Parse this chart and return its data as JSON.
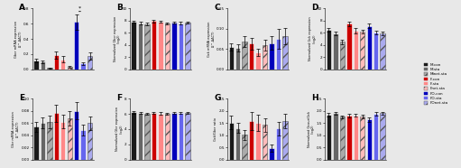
{
  "categories": [
    "M-con",
    "M-sta",
    "Minet-sta",
    "F-con",
    "F-sta",
    "Fnet-sta",
    "FO-con",
    "FO-sta",
    "FOnet-sta"
  ],
  "color_list": [
    "#1a1a1a",
    "#666666",
    "#aaaaaa",
    "#cc0000",
    "#ff8888",
    "#ffbbbb",
    "#0000bb",
    "#6666ee",
    "#aaaaee"
  ],
  "hatch_list": [
    "",
    "",
    "///",
    "",
    "",
    "///",
    "",
    "",
    "///"
  ],
  "panels": {
    "A": {
      "title": "A",
      "ylabel": "Gbcr mRNA expression\n(2^-ΔΔCT)",
      "values": [
        0.12,
        0.1,
        0.018,
        0.185,
        0.13,
        0.03,
        0.62,
        0.075,
        0.175
      ],
      "errors": [
        0.025,
        0.022,
        0.006,
        0.05,
        0.04,
        0.01,
        0.1,
        0.018,
        0.045
      ],
      "ylim": [
        0,
        0.8
      ],
      "yticks": [
        0,
        0.2,
        0.4,
        0.6,
        0.8
      ],
      "significance": true
    },
    "B": {
      "title": "B",
      "ylabel": "Normalized Gbcr expression\n(log2)",
      "values": [
        7.8,
        7.6,
        7.45,
        7.9,
        7.8,
        7.5,
        7.7,
        7.6,
        7.65
      ],
      "errors": [
        0.18,
        0.18,
        0.18,
        0.2,
        0.18,
        0.15,
        0.18,
        0.15,
        0.15
      ],
      "ylim": [
        0,
        10
      ],
      "yticks": [
        0,
        2,
        4,
        6,
        8,
        10
      ]
    },
    "C": {
      "title": "C",
      "ylabel": "Gck mRNA expression\n(2^-ΔΔCT)",
      "values": [
        0.055,
        0.052,
        0.068,
        0.063,
        0.042,
        0.06,
        0.065,
        0.075,
        0.082
      ],
      "errors": [
        0.009,
        0.009,
        0.014,
        0.014,
        0.009,
        0.014,
        0.016,
        0.024,
        0.02
      ],
      "ylim": [
        0,
        0.15
      ],
      "yticks": [
        0,
        0.05,
        0.1,
        0.15
      ]
    },
    "D": {
      "title": "D",
      "ylabel": "Normalized Gck expression\n(log2)",
      "values": [
        6.5,
        5.9,
        4.5,
        7.5,
        6.35,
        6.2,
        7.1,
        6.05,
        5.85
      ],
      "errors": [
        0.28,
        0.28,
        0.38,
        0.38,
        0.38,
        0.28,
        0.38,
        0.28,
        0.28
      ],
      "ylim": [
        0,
        10
      ],
      "yticks": [
        0,
        2,
        4,
        6,
        8,
        10
      ]
    },
    "E": {
      "title": "E",
      "ylabel": "Glcr mRNA expression\n(2^-ΔΔCT)",
      "values": [
        0.054,
        0.06,
        0.062,
        0.076,
        0.062,
        0.068,
        0.08,
        0.048,
        0.06
      ],
      "errors": [
        0.008,
        0.009,
        0.01,
        0.014,
        0.011,
        0.012,
        0.014,
        0.009,
        0.011
      ],
      "ylim": [
        0,
        0.1
      ],
      "yticks": [
        0,
        0.02,
        0.04,
        0.06,
        0.08,
        0.1
      ]
    },
    "F": {
      "title": "F",
      "ylabel": "Normalized Glcr expression\n(log2)",
      "values": [
        6.2,
        6.1,
        6.0,
        6.1,
        6.05,
        6.0,
        6.1,
        6.1,
        6.1
      ],
      "errors": [
        0.14,
        0.14,
        0.14,
        0.14,
        0.14,
        0.14,
        0.14,
        0.14,
        0.14
      ],
      "ylim": [
        0,
        8
      ],
      "yticks": [
        0,
        2,
        4,
        6,
        8
      ]
    },
    "G": {
      "title": "G",
      "ylabel": "Gck/Gbcr ratio",
      "values": [
        1.52,
        1.3,
        1.02,
        1.58,
        1.52,
        1.42,
        0.48,
        1.28,
        1.58
      ],
      "errors": [
        0.28,
        0.2,
        0.2,
        0.38,
        0.33,
        0.28,
        0.14,
        0.28,
        0.28
      ],
      "ylim": [
        0,
        2.5
      ],
      "yticks": [
        0,
        0.5,
        1.0,
        1.5,
        2.0,
        2.5
      ]
    },
    "H": {
      "title": "H",
      "ylabel": "Normalized Gcour/Gck\n(log2)",
      "values": [
        1.85,
        1.9,
        1.75,
        1.8,
        1.82,
        1.78,
        1.65,
        1.88,
        1.9
      ],
      "errors": [
        0.07,
        0.07,
        0.07,
        0.07,
        0.07,
        0.07,
        0.09,
        0.07,
        0.07
      ],
      "ylim": [
        0,
        2.5
      ],
      "yticks": [
        0,
        0.5,
        1.0,
        1.5,
        2.0,
        2.5
      ]
    }
  },
  "legend_labels": [
    "M-con",
    "M-sta",
    "Minet-sta",
    "F-con",
    "F-sta",
    "Fnet-sta",
    "FO-con",
    "FO-sta",
    "FOnet-sta"
  ],
  "bg_color": "#e8e8e8"
}
